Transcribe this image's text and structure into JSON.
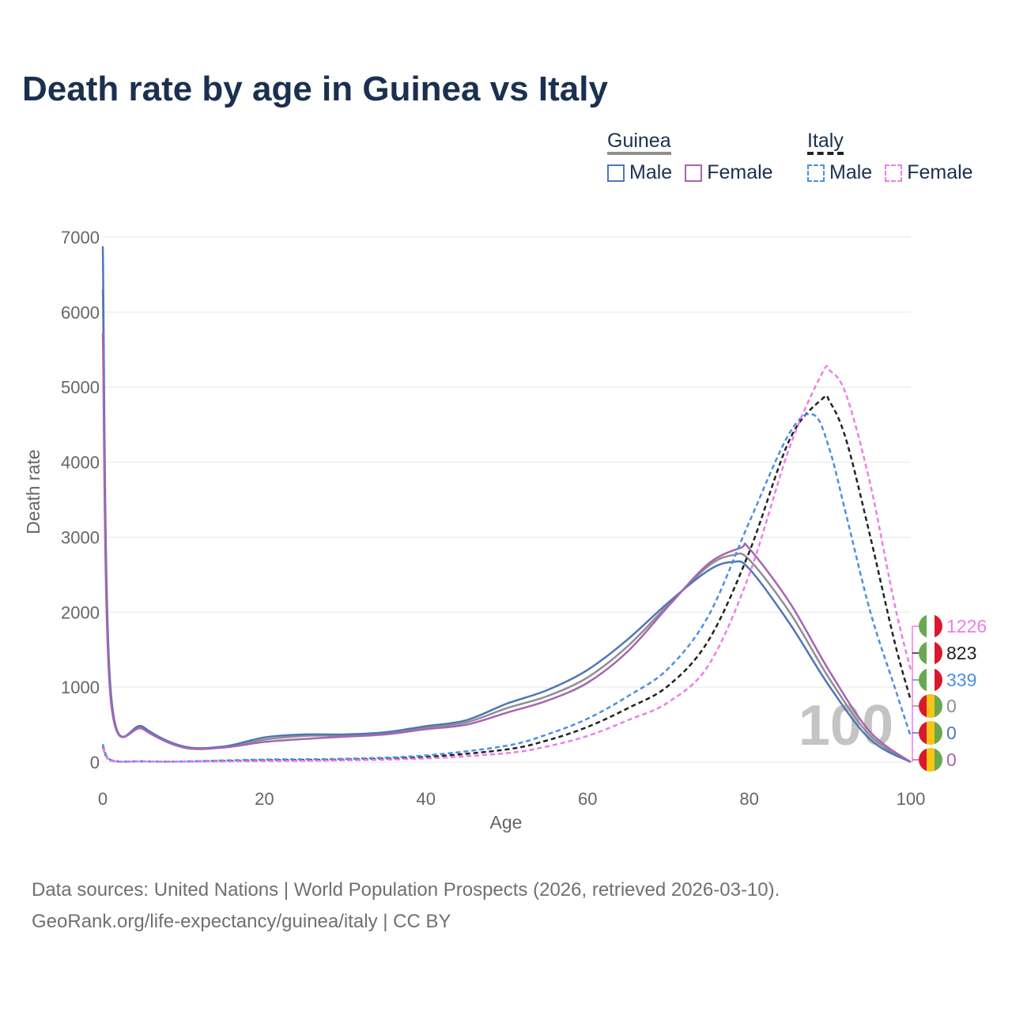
{
  "title": "Death rate by age in Guinea vs Italy",
  "legend": {
    "groups": [
      {
        "name": "Guinea",
        "items": [
          {
            "label": "Male",
            "color": "#4f77b8",
            "style": "solid"
          },
          {
            "label": "Female",
            "color": "#a865b0",
            "style": "solid"
          }
        ]
      },
      {
        "name": "Italy",
        "items": [
          {
            "label": "Male",
            "color": "#4a90e2",
            "style": "dashed"
          },
          {
            "label": "Female",
            "color": "#f07ce6",
            "style": "dashed"
          }
        ]
      }
    ]
  },
  "big_label": "100",
  "end_labels": [
    {
      "value": "1226",
      "country": "Italy",
      "color": "#f07ce6"
    },
    {
      "value": "823",
      "country": "Italy",
      "color": "#222222"
    },
    {
      "value": "339",
      "country": "Italy",
      "color": "#4a90e2"
    },
    {
      "value": "0",
      "country": "Guinea",
      "color": "#8f8f8f"
    },
    {
      "value": "0",
      "country": "Guinea",
      "color": "#4f77b8"
    },
    {
      "value": "0",
      "country": "Guinea",
      "color": "#a865b0"
    }
  ],
  "footer": {
    "source": "Data sources: United Nations | World Population Prospects (2026, retrieved 2026-03-10).",
    "credit": "GeoRank.org/life-expectancy/guinea/italy | CC BY"
  },
  "chart_data": {
    "type": "line",
    "title": "Death rate by age in Guinea vs Italy",
    "xlabel": "Age",
    "ylabel": "Death rate",
    "xlim": [
      0,
      100
    ],
    "ylim": [
      0,
      7000
    ],
    "xticks": [
      0,
      20,
      40,
      60,
      80,
      100
    ],
    "yticks": [
      0,
      1000,
      2000,
      3000,
      4000,
      5000,
      6000,
      7000
    ],
    "grid": true,
    "series": [
      {
        "name": "Guinea Total",
        "color": "#8f8f8f",
        "dash": false,
        "width": 2.5,
        "x": [
          0,
          1,
          5,
          10,
          15,
          20,
          25,
          30,
          35,
          40,
          45,
          50,
          55,
          60,
          65,
          70,
          75,
          78,
          80,
          85,
          90,
          95,
          100
        ],
        "y": [
          6300,
          880,
          450,
          200,
          200,
          300,
          350,
          360,
          390,
          460,
          530,
          720,
          880,
          1130,
          1550,
          2100,
          2620,
          2760,
          2700,
          2000,
          1100,
          350,
          0
        ]
      },
      {
        "name": "Guinea Male",
        "color": "#4f77b8",
        "dash": false,
        "width": 2.5,
        "x": [
          0,
          1,
          5,
          10,
          15,
          20,
          25,
          30,
          35,
          40,
          45,
          50,
          55,
          60,
          65,
          70,
          75,
          78,
          80,
          85,
          90,
          95,
          100
        ],
        "y": [
          6880,
          930,
          470,
          210,
          210,
          330,
          370,
          370,
          400,
          480,
          560,
          780,
          960,
          1230,
          1640,
          2130,
          2560,
          2670,
          2580,
          1850,
          1000,
          300,
          0
        ]
      },
      {
        "name": "Guinea Female",
        "color": "#a865b0",
        "dash": false,
        "width": 2.5,
        "x": [
          0,
          1,
          5,
          10,
          15,
          20,
          25,
          30,
          35,
          40,
          45,
          50,
          55,
          60,
          65,
          70,
          75,
          79,
          80,
          85,
          90,
          95,
          100
        ],
        "y": [
          5720,
          820,
          440,
          195,
          195,
          270,
          310,
          340,
          370,
          440,
          500,
          660,
          820,
          1060,
          1480,
          2080,
          2650,
          2860,
          2850,
          2130,
          1200,
          400,
          0
        ]
      },
      {
        "name": "Italy Total",
        "color": "#222222",
        "dash": true,
        "width": 2.5,
        "x": [
          0,
          1,
          5,
          10,
          20,
          30,
          40,
          50,
          55,
          60,
          65,
          70,
          75,
          80,
          85,
          89,
          90,
          92,
          95,
          98,
          100
        ],
        "y": [
          210,
          25,
          10,
          8,
          25,
          35,
          70,
          170,
          290,
          470,
          720,
          1020,
          1630,
          2800,
          4300,
          4840,
          4800,
          4300,
          3000,
          1600,
          823
        ]
      },
      {
        "name": "Italy Male",
        "color": "#4a90e2",
        "dash": true,
        "width": 2.5,
        "x": [
          0,
          1,
          5,
          10,
          20,
          30,
          40,
          50,
          55,
          60,
          65,
          70,
          75,
          80,
          85,
          88,
          90,
          92,
          95,
          98,
          100
        ],
        "y": [
          240,
          30,
          12,
          10,
          35,
          45,
          90,
          220,
          370,
          580,
          880,
          1250,
          1960,
          3200,
          4390,
          4630,
          4150,
          3300,
          2000,
          1000,
          339
        ]
      },
      {
        "name": "Italy Female",
        "color": "#f07ce6",
        "dash": true,
        "width": 2.5,
        "x": [
          0,
          1,
          5,
          10,
          20,
          30,
          40,
          50,
          55,
          60,
          65,
          70,
          75,
          80,
          85,
          89,
          90,
          92,
          95,
          98,
          100
        ],
        "y": [
          190,
          20,
          8,
          6,
          15,
          25,
          50,
          120,
          210,
          350,
          560,
          800,
          1300,
          2500,
          4200,
          5180,
          5220,
          4900,
          3700,
          2100,
          1226
        ]
      }
    ]
  }
}
